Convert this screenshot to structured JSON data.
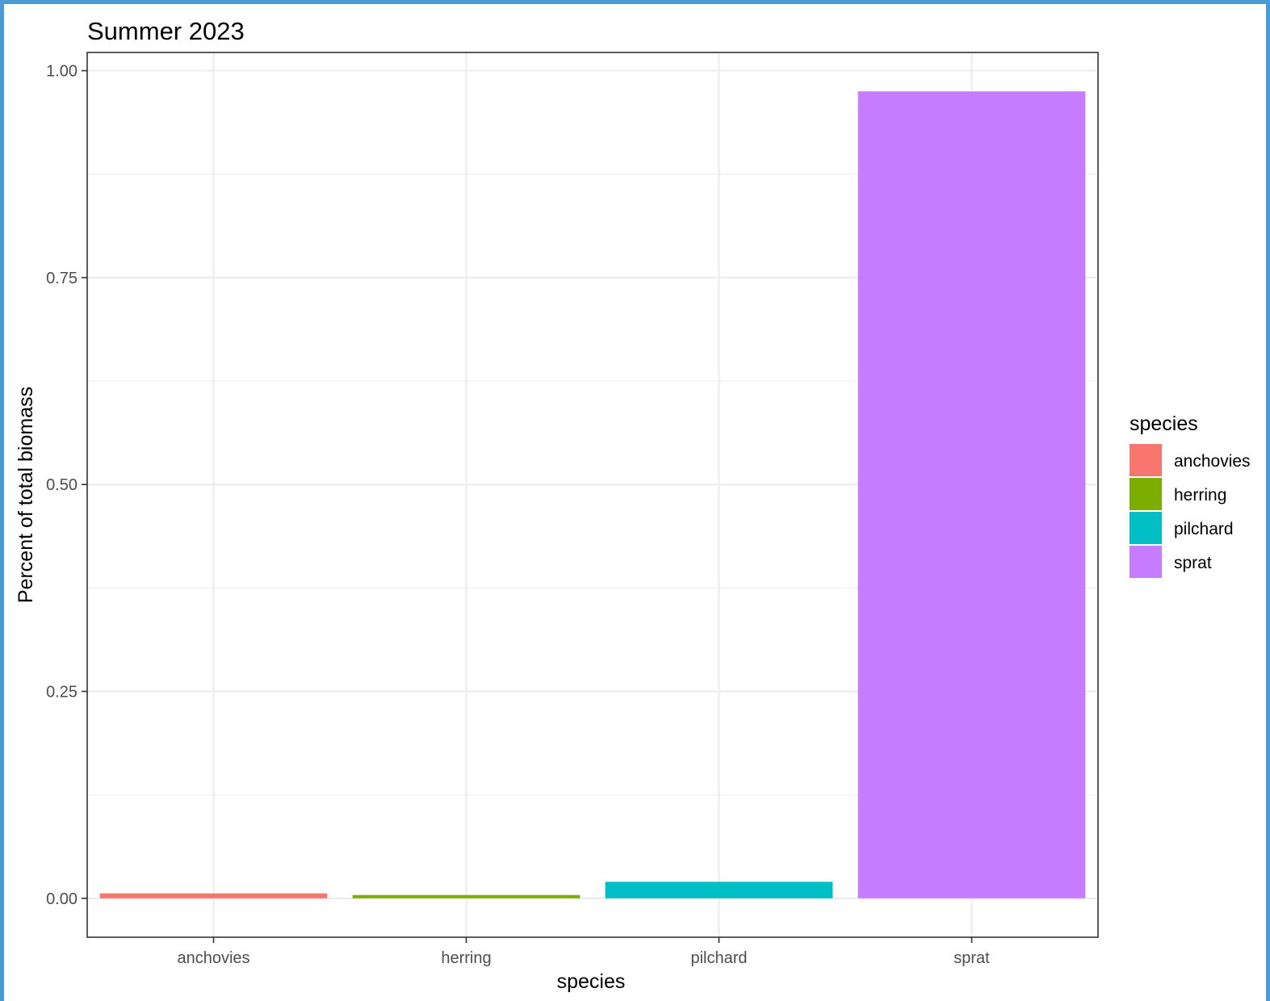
{
  "chart_data": {
    "type": "bar",
    "title": "Summer 2023",
    "xlabel": "species",
    "ylabel": "Percent of total biomass",
    "categories": [
      "anchovies",
      "herring",
      "pilchard",
      "sprat"
    ],
    "values": [
      0.006,
      0.004,
      0.02,
      0.975
    ],
    "colors": [
      "#F8766D",
      "#7CAE00",
      "#00BFC4",
      "#C77CFF"
    ],
    "ylim": [
      -0.047,
      1.022
    ],
    "yticks": [
      0.0,
      0.25,
      0.5,
      0.75,
      1.0
    ],
    "ytick_labels": [
      "0.00",
      "0.25",
      "0.50",
      "0.75",
      "1.00"
    ],
    "grid": true,
    "legend": {
      "title": "species",
      "placement": "right",
      "entries": [
        "anchovies",
        "herring",
        "pilchard",
        "sprat"
      ]
    }
  }
}
